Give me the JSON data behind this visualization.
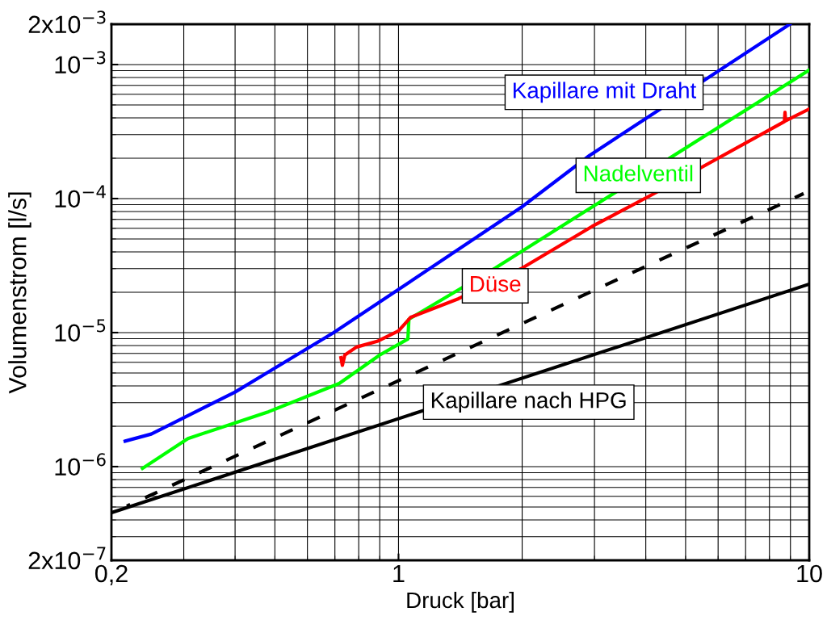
{
  "chart_data": {
    "type": "line",
    "xlabel": "Druck [bar]",
    "ylabel": "Volumenstrom [l/s]",
    "log": "xy",
    "grid": true,
    "legend": false,
    "xlim": [
      0.2,
      10
    ],
    "ylim": [
      2e-07,
      0.002
    ],
    "xticks": [
      {
        "value": 0.2,
        "label": "0,2"
      },
      1,
      10
    ],
    "yticks": [
      {
        "value": 2e-07,
        "label": "2x10$^{−7}$"
      },
      {
        "value": 1e-06,
        "label": "10$^{−6}$"
      },
      {
        "value": 1e-05,
        "label": "10$^{−5}$"
      },
      {
        "value": 0.0001,
        "label": "10$^{−4}$"
      },
      {
        "value": 0.001,
        "label": "10$^{−3}$"
      },
      {
        "value": 0.002,
        "label": "2x10$^{−3}$"
      }
    ],
    "series": [
      {
        "name": "Kapillare mit Draht",
        "color": "#0000ff",
        "x": [
          0.216,
          0.25,
          0.307,
          0.4,
          0.483,
          0.695,
          1,
          2,
          2.92,
          8.97
        ],
        "values": [
          1.55e-06,
          1.75e-06,
          2.4e-06,
          3.6e-06,
          5.1e-06,
          1e-05,
          2.1e-05,
          8.7e-05,
          0.00021,
          0.002
        ]
      },
      {
        "name": "Nadelventil",
        "color": "#00ff00",
        "x": [
          0.238,
          0.307,
          0.483,
          0.717,
          0.9,
          1.054,
          1.06,
          1.72,
          10
        ],
        "values": [
          9.7e-07,
          1.62e-06,
          2.57e-06,
          4.17e-06,
          6.8e-06,
          8.96e-06,
          1.26e-05,
          3.03e-05,
          0.00091
        ]
      },
      {
        "name": "Düse",
        "color": "#ff0000",
        "x": [
          0.724,
          0.73,
          0.74,
          0.79,
          0.887,
          1,
          1.07,
          1.4,
          2.0,
          2.96,
          4.19,
          8.7,
          8.73,
          8.76,
          10
        ],
        "values": [
          6.5e-06,
          5.7e-06,
          6.8e-06,
          7.8e-06,
          8.6e-06,
          1.03e-05,
          1.3e-05,
          1.79e-05,
          3.03e-05,
          6.2e-05,
          0.000109,
          0.000375,
          0.00044,
          0.00038,
          0.000466
        ]
      },
      {
        "name": "Kapillare nach HPG",
        "color": "#000000",
        "x": [
          0.2,
          10
        ],
        "values": [
          4.53e-07,
          2.3e-05
        ]
      },
      {
        "color": "#000000",
        "line_style": "dashed",
        "x": [
          0.218,
          9.69
        ],
        "values": [
          5.07e-07,
          0.000109
        ]
      }
    ]
  }
}
